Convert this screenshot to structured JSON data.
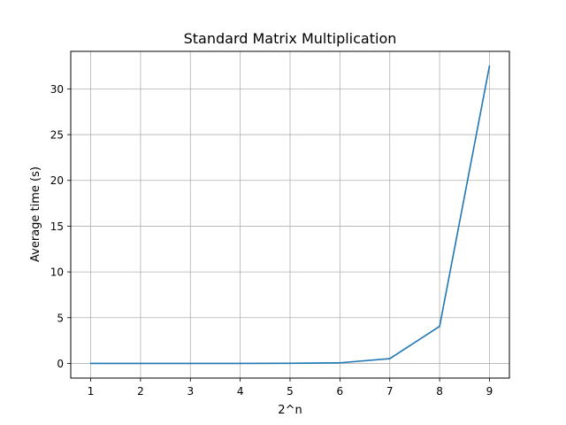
{
  "chart_data": {
    "type": "line",
    "title": "Standard Matrix Multiplication",
    "xlabel": "2^n",
    "ylabel": "Average time (s)",
    "x": [
      1,
      2,
      3,
      4,
      5,
      6,
      7,
      8,
      9
    ],
    "series": [
      {
        "values": [
          0.0,
          0.0,
          0.0,
          0.0,
          0.01,
          0.07,
          0.52,
          4.05,
          32.5
        ],
        "color": "#1f77b4"
      }
    ],
    "xticks": [
      "1",
      "2",
      "3",
      "4",
      "5",
      "6",
      "7",
      "8",
      "9"
    ],
    "yticks": [
      "0",
      "5",
      "10",
      "15",
      "20",
      "25",
      "30"
    ],
    "xlim": [
      0.6,
      9.4
    ],
    "ylim": [
      -1.6,
      34.1
    ],
    "grid": true,
    "colors": {
      "grid": "#b0b0b0",
      "axis": "#000000",
      "line": "#1f77b4"
    }
  }
}
